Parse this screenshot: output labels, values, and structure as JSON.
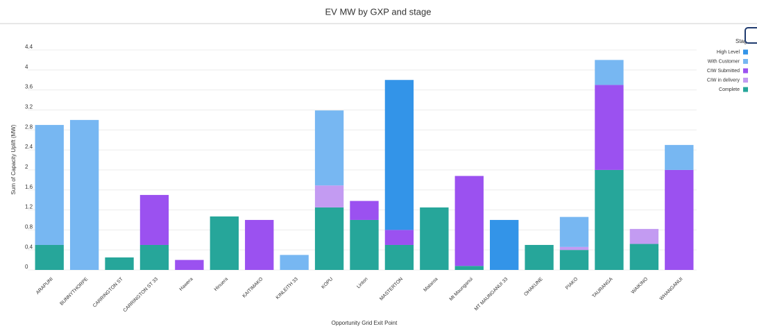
{
  "chart_data": {
    "type": "stacked_bar",
    "title": "EV MW by GXP and stage",
    "x_label": "Opportunity Grid Exit Point",
    "y_label": "Sum of Capacity Uplift (MW)",
    "legend_title": "Stage",
    "legend_position": "right",
    "grid": true,
    "categories": [
      "ARAPUNI",
      "BUNNYTHORPE",
      "CARRINGTON ST",
      "CARRINGTON ST 33",
      "Hawera",
      "Hinuera",
      "KAITIMAKO",
      "KINLEITH 33",
      "KOPU",
      "Linton",
      "MASTERTON",
      "Mataroa",
      "Mt Maunganui",
      "MT MAUNGANUI 33",
      "OHAKUNE",
      "PIAKO",
      "TAURANGA",
      "WAIKINO",
      "WHANGANUI"
    ],
    "ylim": [
      0,
      4.4
    ],
    "yticks": [
      0,
      0.4,
      0.8,
      1.2,
      1.6,
      2,
      2.4,
      2.8,
      3.2,
      3.6,
      4,
      4.4
    ],
    "series": [
      {
        "name": "Complete",
        "color": "#26a69a",
        "values": [
          0.5,
          null,
          0.25,
          0.5,
          null,
          1.07,
          null,
          null,
          1.25,
          1.0,
          0.5,
          1.25,
          0.08,
          null,
          0.5,
          0.4,
          2.0,
          0.52,
          null
        ]
      },
      {
        "name": "CIW in delivery",
        "color": "#c39bf2",
        "values": [
          null,
          null,
          null,
          null,
          null,
          null,
          null,
          null,
          0.44,
          null,
          null,
          null,
          null,
          null,
          null,
          0.06,
          null,
          0.3,
          null
        ]
      },
      {
        "name": "CIW Submitted",
        "color": "#9b51f0",
        "values": [
          null,
          null,
          null,
          1.0,
          0.2,
          null,
          1.0,
          null,
          null,
          0.38,
          0.3,
          null,
          1.8,
          null,
          null,
          null,
          1.7,
          null,
          2.0
        ]
      },
      {
        "name": "With Customer",
        "color": "#77b7f2",
        "values": [
          2.4,
          3.0,
          null,
          null,
          null,
          null,
          null,
          0.3,
          1.5,
          null,
          null,
          null,
          null,
          null,
          null,
          0.6,
          0.5,
          null,
          0.5
        ]
      },
      {
        "name": "High Level",
        "color": "#3394e8",
        "values": [
          null,
          null,
          null,
          null,
          null,
          null,
          null,
          null,
          null,
          null,
          3.0,
          null,
          null,
          1.0,
          null,
          null,
          null,
          null,
          null
        ]
      }
    ]
  }
}
